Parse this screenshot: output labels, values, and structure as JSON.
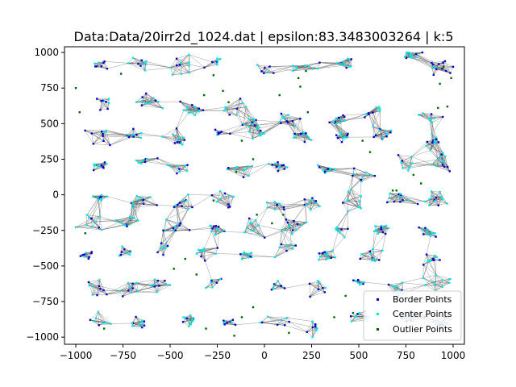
{
  "chart_data": {
    "type": "scatter",
    "title": "Data:Data/20irr2d_1024.dat | epsilon:83.3483003264 | k:5",
    "xlabel": "",
    "ylabel": "",
    "xlim": [
      -1060,
      1060
    ],
    "ylim": [
      -1050,
      1040
    ],
    "x_ticks": [
      -1000,
      -750,
      -500,
      -250,
      0,
      250,
      500,
      750,
      1000
    ],
    "y_ticks": [
      -1000,
      -750,
      -500,
      -250,
      0,
      250,
      500,
      750,
      1000
    ],
    "grid": false,
    "legend_position": "lower-right",
    "edges_color": "#555555",
    "series": [
      {
        "name": "Border Points",
        "color": "#0000cc"
      },
      {
        "name": "Center Points",
        "color": "#00e5e5"
      },
      {
        "name": "Outlier Points",
        "color": "#006400"
      }
    ],
    "clusters": [
      [
        -870,
        930
      ],
      [
        -660,
        920
      ],
      [
        -450,
        920
      ],
      [
        -260,
        930
      ],
      [
        -10,
        870
      ],
      [
        220,
        890
      ],
      [
        430,
        920
      ],
      [
        780,
        980
      ],
      [
        940,
        900
      ],
      [
        -850,
        650
      ],
      [
        -600,
        650
      ],
      [
        -380,
        600
      ],
      [
        -170,
        600
      ],
      [
        -60,
        500
      ],
      [
        130,
        520
      ],
      [
        380,
        520
      ],
      [
        570,
        580
      ],
      [
        880,
        550
      ],
      [
        -900,
        430
      ],
      [
        -700,
        420
      ],
      [
        -480,
        400
      ],
      [
        -230,
        430
      ],
      [
        -30,
        430
      ],
      [
        200,
        430
      ],
      [
        420,
        410
      ],
      [
        620,
        430
      ],
      [
        900,
        380
      ],
      [
        -870,
        200
      ],
      [
        -640,
        220
      ],
      [
        -450,
        200
      ],
      [
        -120,
        180
      ],
      [
        80,
        200
      ],
      [
        320,
        180
      ],
      [
        540,
        150
      ],
      [
        760,
        200
      ],
      [
        950,
        230
      ],
      [
        -880,
        -20
      ],
      [
        -660,
        -40
      ],
      [
        -420,
        -60
      ],
      [
        -220,
        -30
      ],
      [
        50,
        -80
      ],
      [
        260,
        -50
      ],
      [
        480,
        -40
      ],
      [
        720,
        -20
      ],
      [
        920,
        -20
      ],
      [
        -920,
        -200
      ],
      [
        -720,
        -180
      ],
      [
        -480,
        -220
      ],
      [
        -250,
        -250
      ],
      [
        -50,
        -230
      ],
      [
        150,
        -230
      ],
      [
        390,
        -250
      ],
      [
        620,
        -240
      ],
      [
        880,
        -260
      ],
      [
        -940,
        -420
      ],
      [
        -740,
        -400
      ],
      [
        -540,
        -380
      ],
      [
        -310,
        -420
      ],
      [
        -90,
        -420
      ],
      [
        120,
        -380
      ],
      [
        330,
        -420
      ],
      [
        580,
        -430
      ],
      [
        880,
        -450
      ],
      [
        -900,
        -660
      ],
      [
        -720,
        -640
      ],
      [
        -560,
        -630
      ],
      [
        -260,
        -620
      ],
      [
        60,
        -640
      ],
      [
        280,
        -660
      ],
      [
        500,
        -620
      ],
      [
        720,
        -660
      ],
      [
        900,
        -620
      ],
      [
        -880,
        -880
      ],
      [
        -660,
        -900
      ],
      [
        -400,
        -880
      ],
      [
        -180,
        -900
      ],
      [
        50,
        -880
      ],
      [
        280,
        -940
      ],
      [
        500,
        -860
      ],
      [
        760,
        -880
      ],
      [
        940,
        -880
      ]
    ],
    "outlier_points": [
      [
        -1000,
        750
      ],
      [
        -980,
        580
      ],
      [
        -950,
        -270
      ],
      [
        -850,
        -940
      ],
      [
        -480,
        -520
      ],
      [
        -420,
        -450
      ],
      [
        -360,
        -560
      ],
      [
        -320,
        700
      ],
      [
        -270,
        840
      ],
      [
        -220,
        730
      ],
      [
        -190,
        650
      ],
      [
        -120,
        380
      ],
      [
        -60,
        250
      ],
      [
        -40,
        -140
      ],
      [
        -120,
        -860
      ],
      [
        100,
        -140
      ],
      [
        130,
        -970
      ],
      [
        180,
        820
      ],
      [
        190,
        760
      ],
      [
        220,
        870
      ],
      [
        230,
        580
      ],
      [
        370,
        -860
      ],
      [
        430,
        -710
      ],
      [
        470,
        -830
      ],
      [
        520,
        380
      ],
      [
        560,
        300
      ],
      [
        680,
        30
      ],
      [
        700,
        30
      ],
      [
        790,
        140
      ],
      [
        830,
        80
      ],
      [
        930,
        780
      ],
      [
        950,
        900
      ],
      [
        990,
        820
      ],
      [
        920,
        610
      ],
      [
        970,
        620
      ],
      [
        -310,
        -940
      ],
      [
        -160,
        -990
      ],
      [
        -60,
        -790
      ],
      [
        40,
        -200
      ],
      [
        -270,
        -40
      ],
      [
        80,
        700
      ],
      [
        -760,
        850
      ],
      [
        -150,
        160
      ]
    ],
    "seed": 20240
  }
}
